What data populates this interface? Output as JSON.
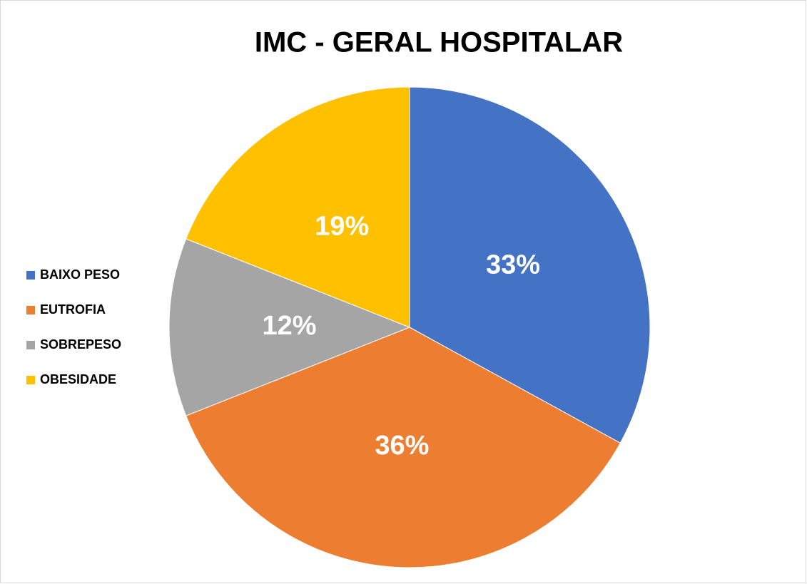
{
  "chart_data": {
    "type": "pie",
    "title": "IMC - GERAL HOSPITALAR",
    "categories": [
      "BAIXO PESO",
      "EUTROFIA",
      "SOBREPESO",
      "OBESIDADE"
    ],
    "values": [
      33,
      36,
      12,
      19
    ],
    "value_labels": [
      "33%",
      "36%",
      "12%",
      "19%"
    ],
    "colors": [
      "#4472c4",
      "#ed7d31",
      "#a5a5a5",
      "#ffc000"
    ],
    "legend": "left"
  }
}
